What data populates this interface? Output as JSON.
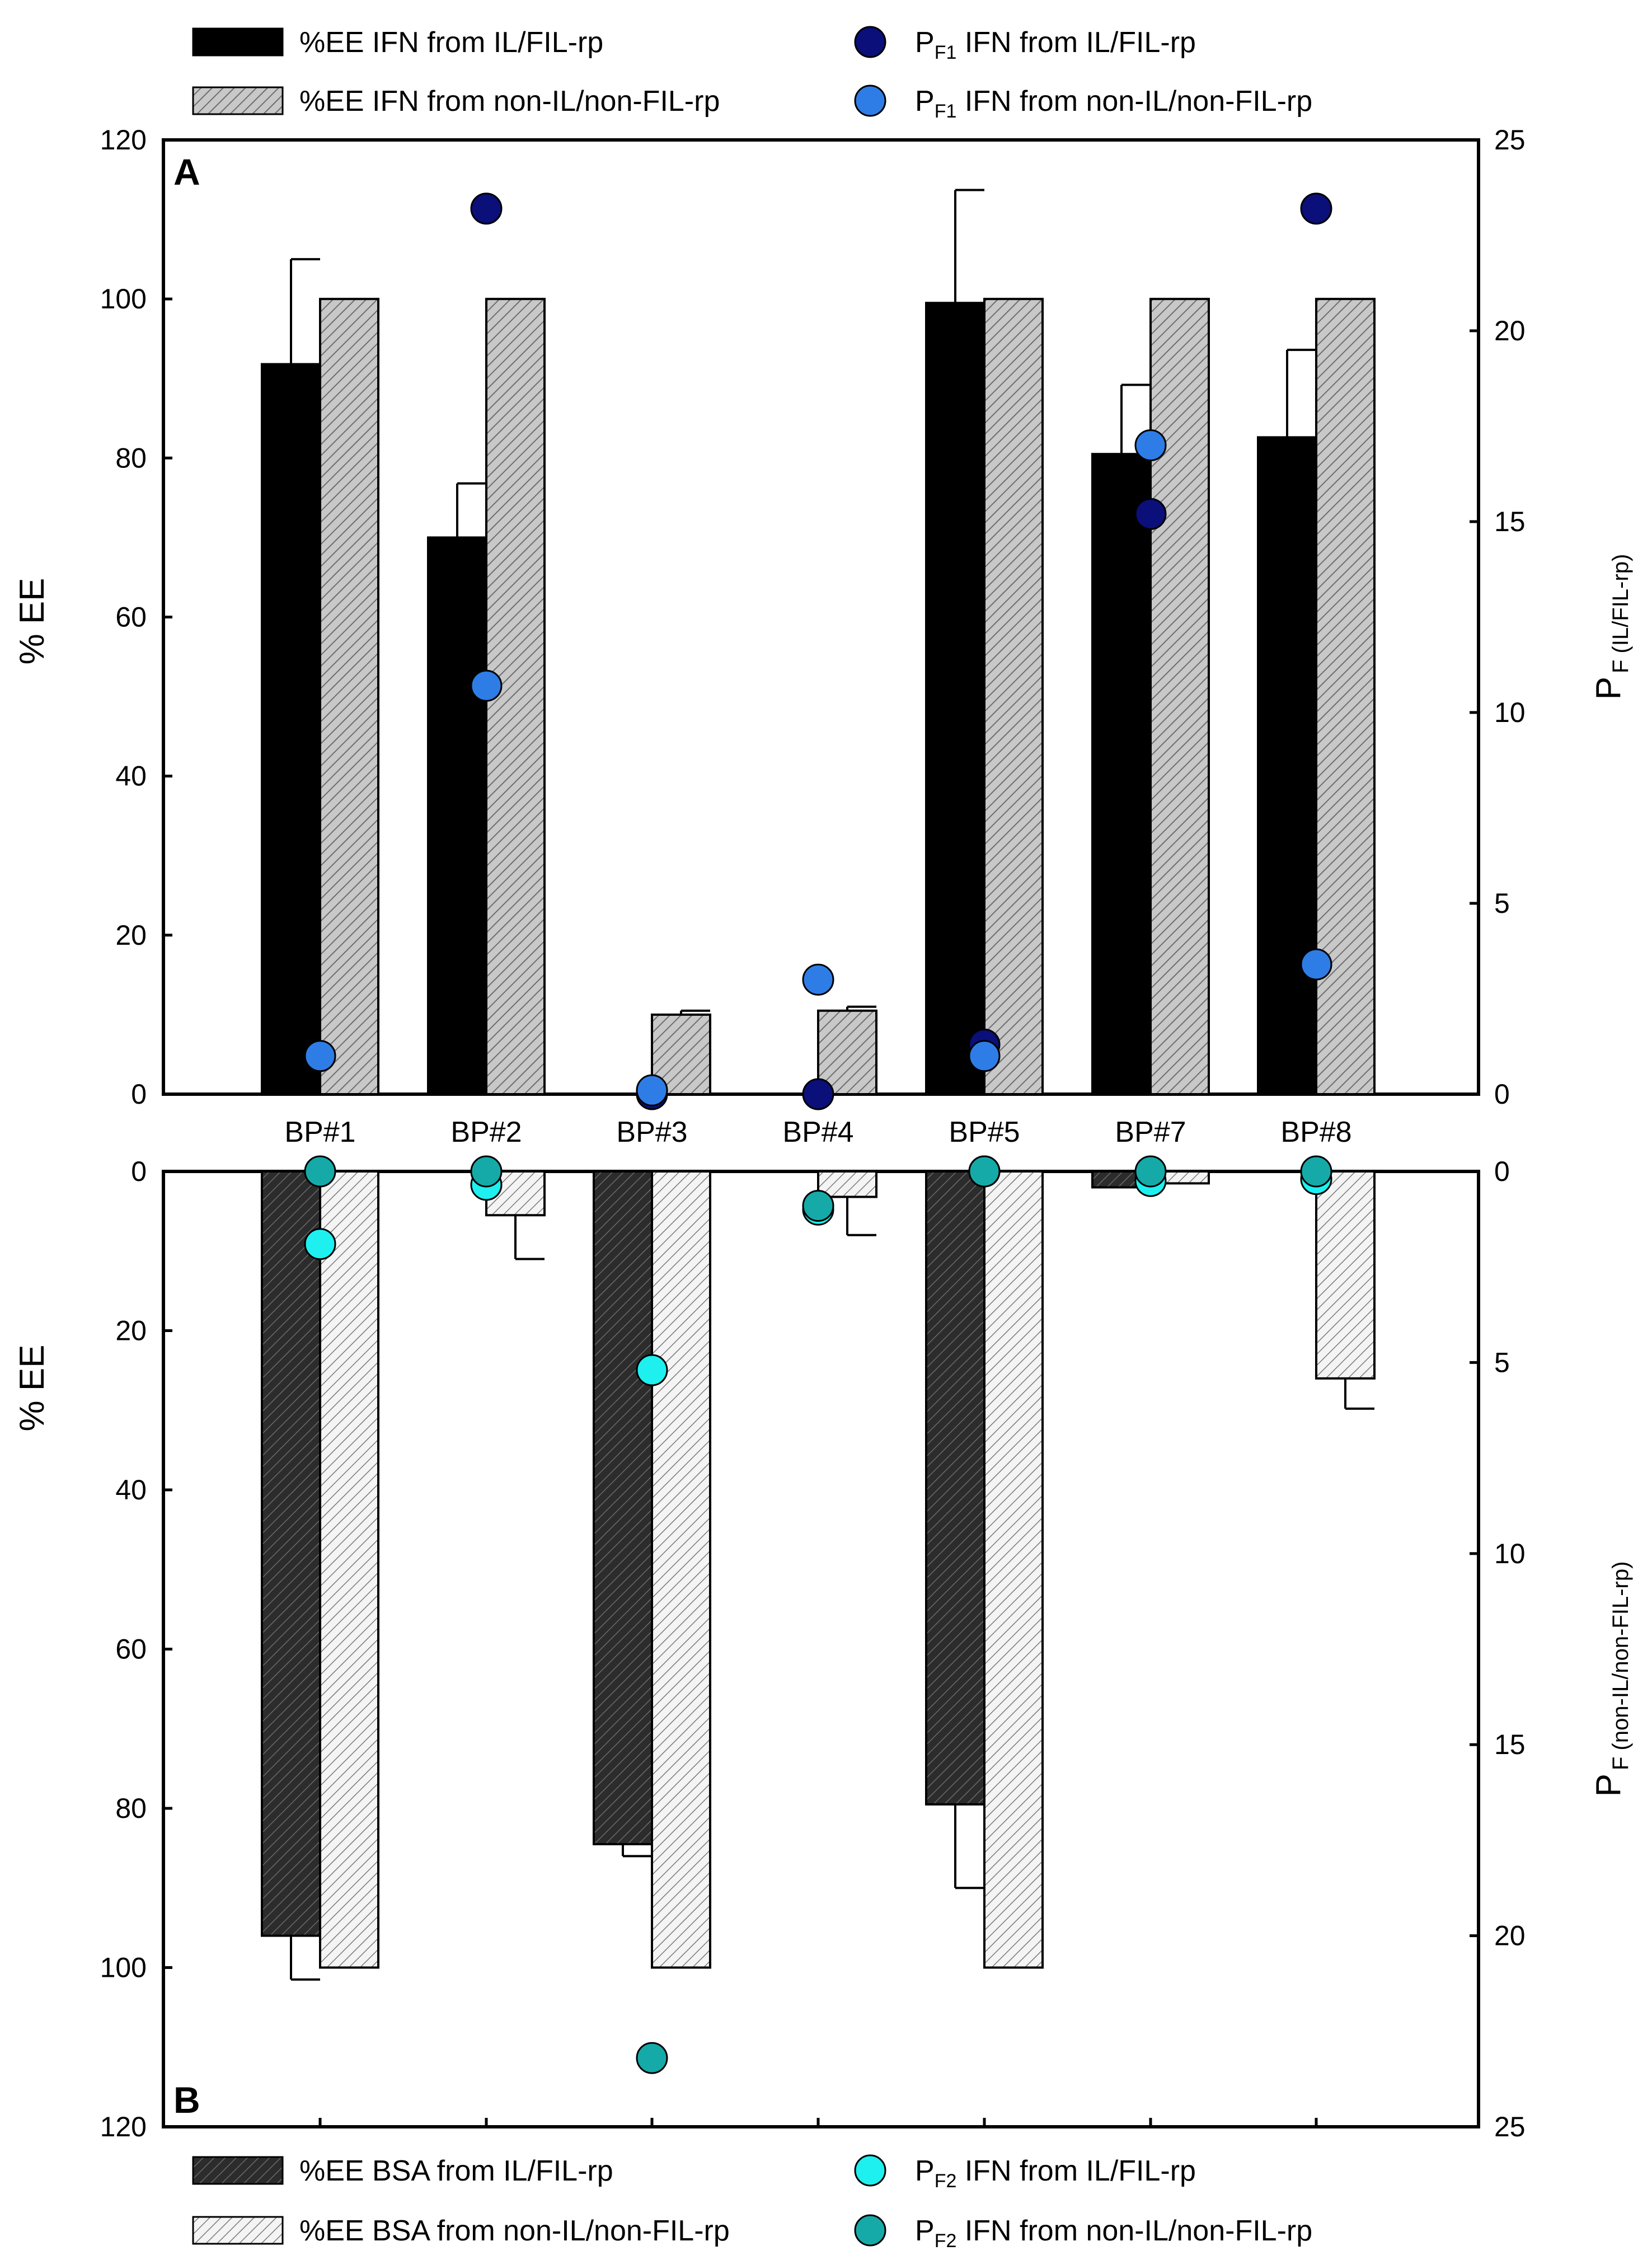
{
  "chart_data": [
    {
      "panel": "A",
      "type": "bar",
      "panel_label": "A",
      "categories": [
        "BP#1",
        "BP#2",
        "BP#3",
        "BP#4",
        "BP#5",
        "BP#7",
        "BP#8"
      ],
      "ylabel": "% EE",
      "y2label_main": "P",
      "y2label_sub": "F (IL/FIL-rp)",
      "ylim": [
        0,
        120
      ],
      "yticks": [
        "0",
        "20",
        "40",
        "60",
        "80",
        "100",
        "120"
      ],
      "y2lim": [
        0,
        25
      ],
      "y2ticks": [
        "0",
        "5",
        "10",
        "15",
        "20",
        "25"
      ],
      "y_inverted": false,
      "legend_position": "top",
      "bar_series": [
        {
          "name": "%EE IFN from IL/FIL-rp",
          "style": "solid-black",
          "values": [
            91.8,
            70.0,
            0,
            0,
            99.5,
            80.5,
            82.6
          ],
          "errors": [
            13.2,
            6.8,
            0,
            0,
            14.2,
            8.7,
            11.0
          ]
        },
        {
          "name": "%EE IFN from non-IL/non-FIL-rp",
          "style": "hatch-gray",
          "values": [
            100,
            100,
            10.0,
            10.5,
            100,
            100,
            100
          ],
          "errors": [
            0,
            0,
            0.5,
            0.5,
            0,
            0,
            0
          ]
        }
      ],
      "point_series": [
        {
          "name_pre": "P",
          "name_sub": "F1",
          "name_post": " IFN from IL/FIL-rp",
          "color": "#0a0f7a",
          "values": [
            1.0,
            23.2,
            0.0,
            0.0,
            1.3,
            15.2,
            23.2
          ]
        },
        {
          "name_pre": "P",
          "name_sub": "F1",
          "name_post": " IFN from non-IL/non-FIL-rp",
          "color": "#2e7de6",
          "values": [
            1.0,
            10.7,
            0.1,
            3.0,
            1.0,
            17.0,
            3.4
          ]
        }
      ]
    },
    {
      "panel": "B",
      "type": "bar",
      "panel_label": "B",
      "categories": [
        "BP#1",
        "BP#2",
        "BP#3",
        "BP#4",
        "BP#5",
        "BP#7",
        "BP#8"
      ],
      "ylabel": "% EE",
      "y2label_main": "P",
      "y2label_sub": "F (non-IL/non-FIL-rp)",
      "ylim": [
        0,
        120
      ],
      "yticks": [
        "0",
        "20",
        "40",
        "60",
        "80",
        "100",
        "120"
      ],
      "y2lim": [
        0,
        25
      ],
      "y2ticks": [
        "0",
        "5",
        "10",
        "15",
        "20",
        "25"
      ],
      "y_inverted": true,
      "legend_position": "bottom",
      "bar_series": [
        {
          "name": "%EE BSA from IL/FIL-rp",
          "style": "hatch-dark",
          "values": [
            96.0,
            0,
            84.5,
            0,
            79.5,
            2.0,
            0
          ],
          "errors": [
            5.5,
            0,
            1.5,
            0,
            10.5,
            0,
            0
          ]
        },
        {
          "name": "%EE BSA from non-IL/non-FIL-rp",
          "style": "hatch-light",
          "values": [
            100,
            5.5,
            100,
            3.2,
            100,
            1.5,
            26.0
          ],
          "errors": [
            0,
            5.5,
            0,
            4.8,
            0,
            0,
            3.8
          ]
        }
      ],
      "point_series": [
        {
          "name_pre": "P",
          "name_sub": "F2",
          "name_post": " IFN from IL/FIL-rp",
          "color": "#1ef0f0",
          "values": [
            1.9,
            0.35,
            5.2,
            1.0,
            0.0,
            0.25,
            0.2
          ]
        },
        {
          "name_pre": "P",
          "name_sub": "F2",
          "name_post": " IFN from non-IL/non-FIL-rp",
          "color": "#15aaa8",
          "values": [
            0.0,
            0.0,
            23.2,
            0.9,
            0.0,
            0.0,
            0.0
          ]
        }
      ]
    }
  ]
}
